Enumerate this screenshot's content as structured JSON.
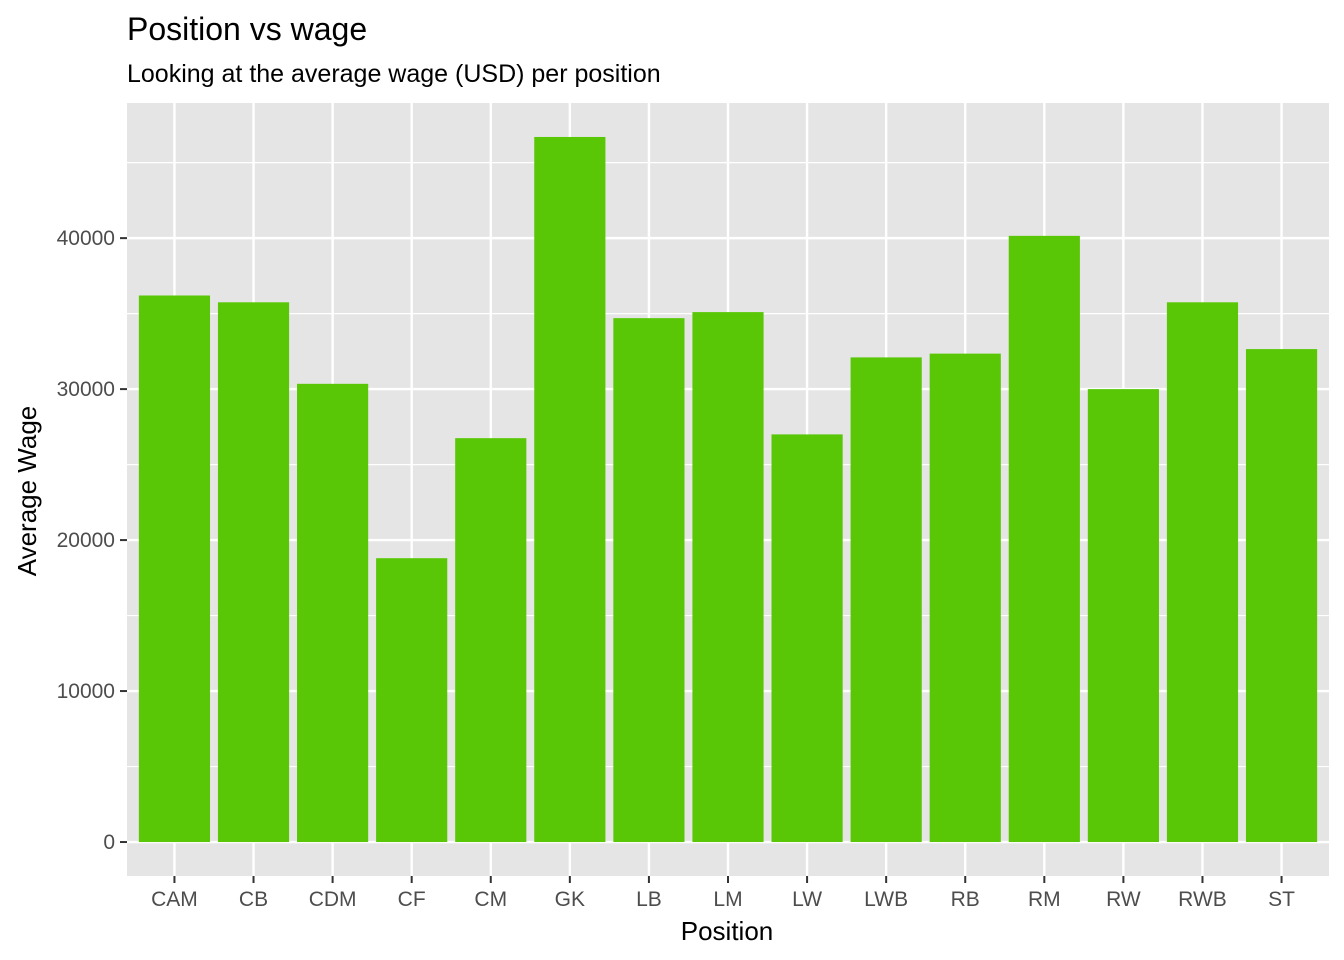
{
  "chart_data": {
    "type": "bar",
    "title": "Position vs wage",
    "subtitle": "Looking at the average wage (USD) per position",
    "xlabel": "Position",
    "ylabel": "Average Wage",
    "categories": [
      "CAM",
      "CB",
      "CDM",
      "CF",
      "CM",
      "GK",
      "LB",
      "LM",
      "LW",
      "LWB",
      "RB",
      "RM",
      "RW",
      "RWB",
      "ST"
    ],
    "values": [
      36200,
      35750,
      30350,
      18800,
      26750,
      46700,
      34700,
      35100,
      27000,
      32100,
      32350,
      40150,
      30000,
      35750,
      32650
    ],
    "ylim": [
      -2250,
      48950
    ],
    "yticks": [
      0,
      10000,
      20000,
      30000,
      40000
    ],
    "ytick_labels": [
      "0",
      "10000",
      "20000",
      "30000",
      "40000"
    ],
    "grid": true,
    "legend": "none",
    "colors": {
      "bar": "#59c706",
      "panel_background": "#e5e5e5",
      "grid": "#ffffff"
    }
  }
}
